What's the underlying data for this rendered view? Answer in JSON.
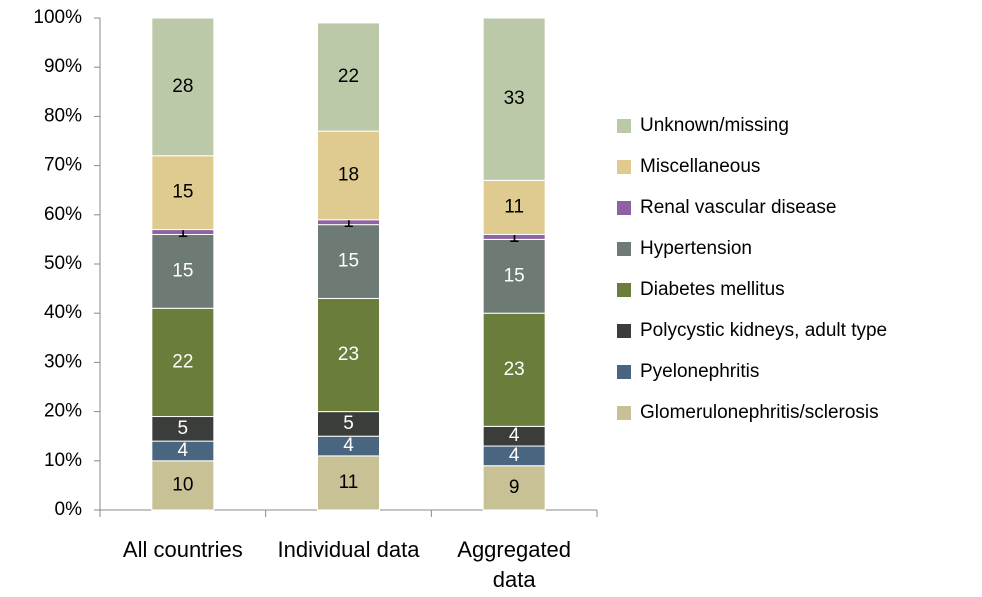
{
  "chart_data": {
    "type": "stacked_bar",
    "categories": [
      "All countries",
      "Individual data",
      "Aggregated data"
    ],
    "series": [
      {
        "name": "Glomerulonephritis/sclerosis",
        "color": "#c9c196",
        "label_color": "#000000",
        "values": [
          10,
          11,
          9
        ]
      },
      {
        "name": "Pyelonephritis",
        "color": "#4a6580",
        "label_color": "#ffffff",
        "values": [
          4,
          4,
          4
        ]
      },
      {
        "name": "Polycystic kidneys, adult type",
        "color": "#3b3d3b",
        "label_color": "#ffffff",
        "values": [
          5,
          5,
          4
        ]
      },
      {
        "name": "Diabetes mellitus",
        "color": "#6b7d3a",
        "label_color": "#ffffff",
        "values": [
          22,
          23,
          23
        ]
      },
      {
        "name": "Hypertension",
        "color": "#6e7a74",
        "label_color": "#ffffff",
        "values": [
          15,
          15,
          15
        ]
      },
      {
        "name": "Renal vascular disease",
        "color": "#8e62a3",
        "label_color": "#000000",
        "values": [
          1,
          1,
          1
        ]
      },
      {
        "name": "Miscellaneous",
        "color": "#dfca8f",
        "label_color": "#000000",
        "values": [
          15,
          18,
          11
        ]
      },
      {
        "name": "Unknown/missing",
        "color": "#bcc9a9",
        "label_color": "#000000",
        "values": [
          28,
          22,
          33
        ]
      }
    ],
    "ylim": [
      0,
      100
    ],
    "yticks": [
      {
        "value": 0,
        "label": "0%"
      },
      {
        "value": 10,
        "label": "10%"
      },
      {
        "value": 20,
        "label": "20%"
      },
      {
        "value": 30,
        "label": "30%"
      },
      {
        "value": 40,
        "label": "40%"
      },
      {
        "value": 50,
        "label": "50%"
      },
      {
        "value": 60,
        "label": "60%"
      },
      {
        "value": 70,
        "label": "70%"
      },
      {
        "value": 80,
        "label": "80%"
      },
      {
        "value": 90,
        "label": "90%"
      },
      {
        "value": 100,
        "label": "100%"
      }
    ],
    "grid": false,
    "legend": "right"
  }
}
